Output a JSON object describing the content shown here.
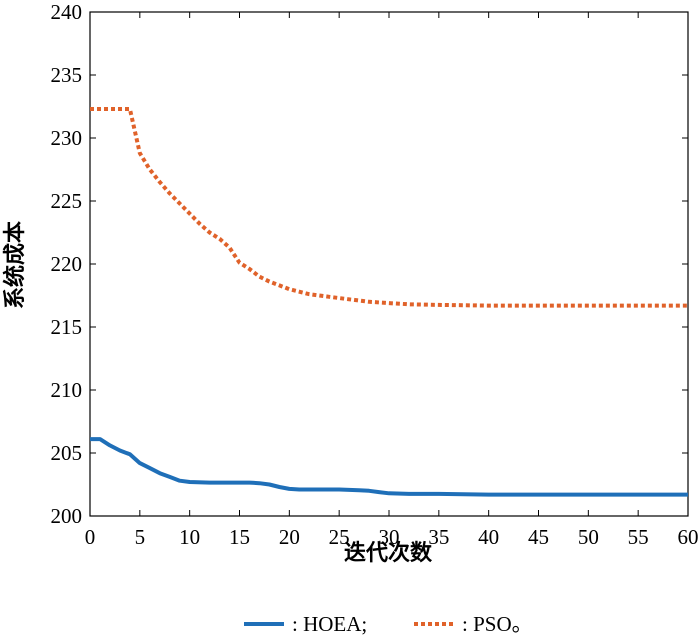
{
  "chart_data": {
    "type": "line",
    "title": "",
    "xlabel": "迭代次数",
    "ylabel": "系统成本",
    "xlim": [
      0,
      60
    ],
    "ylim": [
      200,
      240
    ],
    "xticks": [
      0,
      5,
      10,
      15,
      20,
      25,
      30,
      35,
      40,
      45,
      50,
      55,
      60
    ],
    "yticks": [
      200,
      205,
      210,
      215,
      220,
      225,
      230,
      235,
      240
    ],
    "grid": false,
    "legend_position": "bottom-center",
    "series": [
      {
        "name": ": HOEA;",
        "color": "#1f6fb8",
        "style": "solid",
        "points": [
          [
            0,
            206.1
          ],
          [
            1,
            206.1
          ],
          [
            2,
            205.6
          ],
          [
            3,
            205.2
          ],
          [
            4,
            204.9
          ],
          [
            5,
            204.2
          ],
          [
            6,
            203.8
          ],
          [
            7,
            203.4
          ],
          [
            8,
            203.1
          ],
          [
            9,
            202.8
          ],
          [
            10,
            202.7
          ],
          [
            12,
            202.65
          ],
          [
            14,
            202.65
          ],
          [
            16,
            202.65
          ],
          [
            17,
            202.6
          ],
          [
            18,
            202.5
          ],
          [
            19,
            202.3
          ],
          [
            20,
            202.15
          ],
          [
            21,
            202.1
          ],
          [
            23,
            202.1
          ],
          [
            25,
            202.1
          ],
          [
            27,
            202.05
          ],
          [
            28,
            202.0
          ],
          [
            29,
            201.9
          ],
          [
            30,
            201.8
          ],
          [
            32,
            201.75
          ],
          [
            35,
            201.75
          ],
          [
            40,
            201.7
          ],
          [
            45,
            201.7
          ],
          [
            50,
            201.7
          ],
          [
            55,
            201.7
          ],
          [
            60,
            201.7
          ]
        ]
      },
      {
        "name": ": PSO。",
        "color": "#e0622a",
        "style": "dotted",
        "points": [
          [
            0,
            232.3
          ],
          [
            1,
            232.3
          ],
          [
            2,
            232.3
          ],
          [
            3,
            232.3
          ],
          [
            4,
            232.3
          ],
          [
            5,
            228.8
          ],
          [
            6,
            227.5
          ],
          [
            7,
            226.5
          ],
          [
            8,
            225.6
          ],
          [
            9,
            224.8
          ],
          [
            10,
            224.0
          ],
          [
            11,
            223.2
          ],
          [
            12,
            222.5
          ],
          [
            13,
            222.0
          ],
          [
            14,
            221.3
          ],
          [
            15,
            220.1
          ],
          [
            16,
            219.6
          ],
          [
            17,
            219.0
          ],
          [
            18,
            218.6
          ],
          [
            19,
            218.3
          ],
          [
            20,
            218.0
          ],
          [
            22,
            217.6
          ],
          [
            24,
            217.4
          ],
          [
            26,
            217.2
          ],
          [
            28,
            217.0
          ],
          [
            30,
            216.9
          ],
          [
            32,
            216.8
          ],
          [
            35,
            216.75
          ],
          [
            40,
            216.7
          ],
          [
            45,
            216.7
          ],
          [
            50,
            216.7
          ],
          [
            55,
            216.7
          ],
          [
            60,
            216.7
          ]
        ]
      }
    ]
  }
}
